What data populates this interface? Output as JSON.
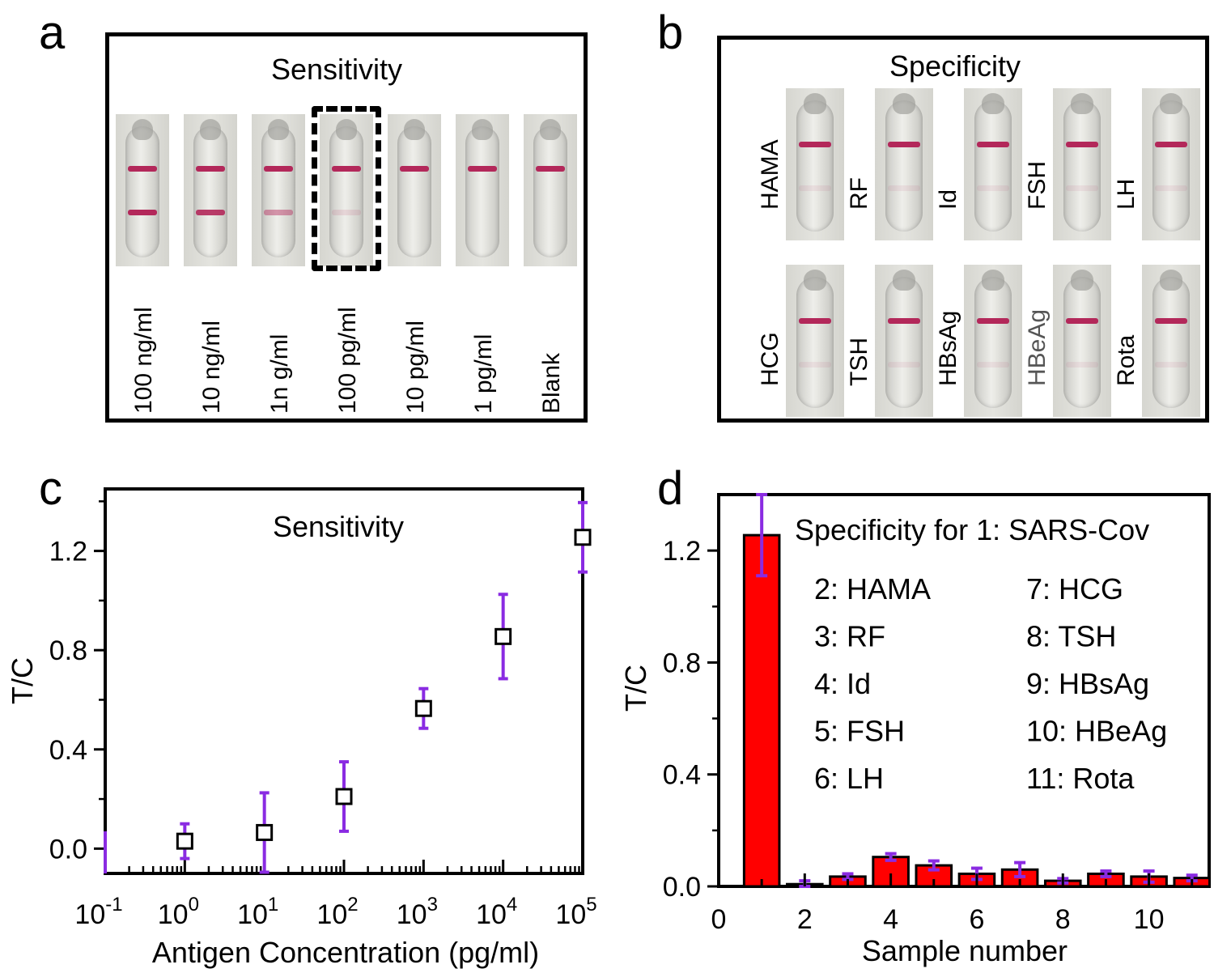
{
  "panels": {
    "a": {
      "letter": "a",
      "title": "Sensitivity",
      "strips": [
        {
          "label": "100 ng/ml",
          "control": true,
          "test_intensity": 1.0
        },
        {
          "label": "10 ng/ml",
          "control": true,
          "test_intensity": 0.9
        },
        {
          "label": "1n g/ml",
          "control": true,
          "test_intensity": 0.45
        },
        {
          "label": "100 pg/ml",
          "control": true,
          "test_intensity": 0.12,
          "highlighted": true
        },
        {
          "label": "10 pg/ml",
          "control": true,
          "test_intensity": 0.0
        },
        {
          "label": "1 pg/ml",
          "control": true,
          "test_intensity": 0.0
        },
        {
          "label": "Blank",
          "control": true,
          "test_intensity": 0.0
        }
      ]
    },
    "b": {
      "letter": "b",
      "title": "Specificity",
      "rows": [
        [
          "HAMA",
          "RF",
          "Id",
          "FSH",
          "LH"
        ],
        [
          "HCG",
          "TSH",
          "HBsAg",
          "HBeAg",
          "Rota"
        ]
      ],
      "colors": {
        "band": "#b3285a",
        "label_gray": "#555555"
      }
    },
    "c": {
      "letter": "c"
    },
    "d": {
      "letter": "d"
    }
  },
  "chart_data": [
    {
      "panel": "c",
      "type": "scatter",
      "title": "Sensitivity",
      "xlabel": "Antigen Concentration (pg/ml)",
      "ylabel": "T/C",
      "xscale": "log",
      "xlim": [
        0.1,
        100000
      ],
      "ylim": [
        -0.1,
        1.45
      ],
      "xticks": [
        {
          "value": 0.1,
          "base": "10",
          "exp": "-1"
        },
        {
          "value": 1,
          "base": "10",
          "exp": "0"
        },
        {
          "value": 10,
          "base": "10",
          "exp": "1"
        },
        {
          "value": 100,
          "base": "10",
          "exp": "2"
        },
        {
          "value": 1000,
          "base": "10",
          "exp": "3"
        },
        {
          "value": 10000,
          "base": "10",
          "exp": "4"
        },
        {
          "value": 100000,
          "base": "10",
          "exp": "5"
        }
      ],
      "yticks": [
        "0.0",
        "0.4",
        "0.8",
        "1.2"
      ],
      "points": [
        {
          "x": 1,
          "y": 0.03,
          "err": 0.07
        },
        {
          "x": 10,
          "y": 0.065,
          "err": 0.16
        },
        {
          "x": 100,
          "y": 0.21,
          "err": 0.14
        },
        {
          "x": 1000,
          "y": 0.565,
          "err": 0.08
        },
        {
          "x": 10000,
          "y": 0.855,
          "err": 0.17
        },
        {
          "x": 100000,
          "y": 1.255,
          "err": 0.14
        }
      ],
      "colors": {
        "marker_edge": "#000000",
        "error_bar": "#8a2be2"
      }
    },
    {
      "panel": "d",
      "type": "bar",
      "xlabel": "Sample number",
      "ylabel": "T/C",
      "xlim": [
        0,
        11.4
      ],
      "ylim": [
        0,
        1.4
      ],
      "xticks": [
        "0",
        "2",
        "4",
        "6",
        "8",
        "10"
      ],
      "yticks": [
        "0.0",
        "0.4",
        "0.8",
        "1.2"
      ],
      "categories": [
        1,
        2,
        3,
        4,
        5,
        6,
        7,
        8,
        9,
        10,
        11
      ],
      "values": [
        1.255,
        0.008,
        0.035,
        0.105,
        0.075,
        0.045,
        0.06,
        0.02,
        0.045,
        0.035,
        0.03
      ],
      "errors": [
        0.145,
        0.012,
        0.01,
        0.012,
        0.016,
        0.02,
        0.025,
        0.008,
        0.01,
        0.02,
        0.01
      ],
      "legend": {
        "heading": "Specificity for 1: SARS-Cov",
        "entries": [
          [
            "2: HAMA",
            "7: HCG"
          ],
          [
            "3: RF",
            "8: TSH"
          ],
          [
            "4: Id",
            "9: HBsAg"
          ],
          [
            "5: FSH",
            "10: HBeAg"
          ],
          [
            "6: LH",
            "11: Rota"
          ]
        ]
      },
      "colors": {
        "bar": "#ff0000",
        "bar_edge": "#000000",
        "error_bar": "#8a2be2"
      }
    }
  ]
}
